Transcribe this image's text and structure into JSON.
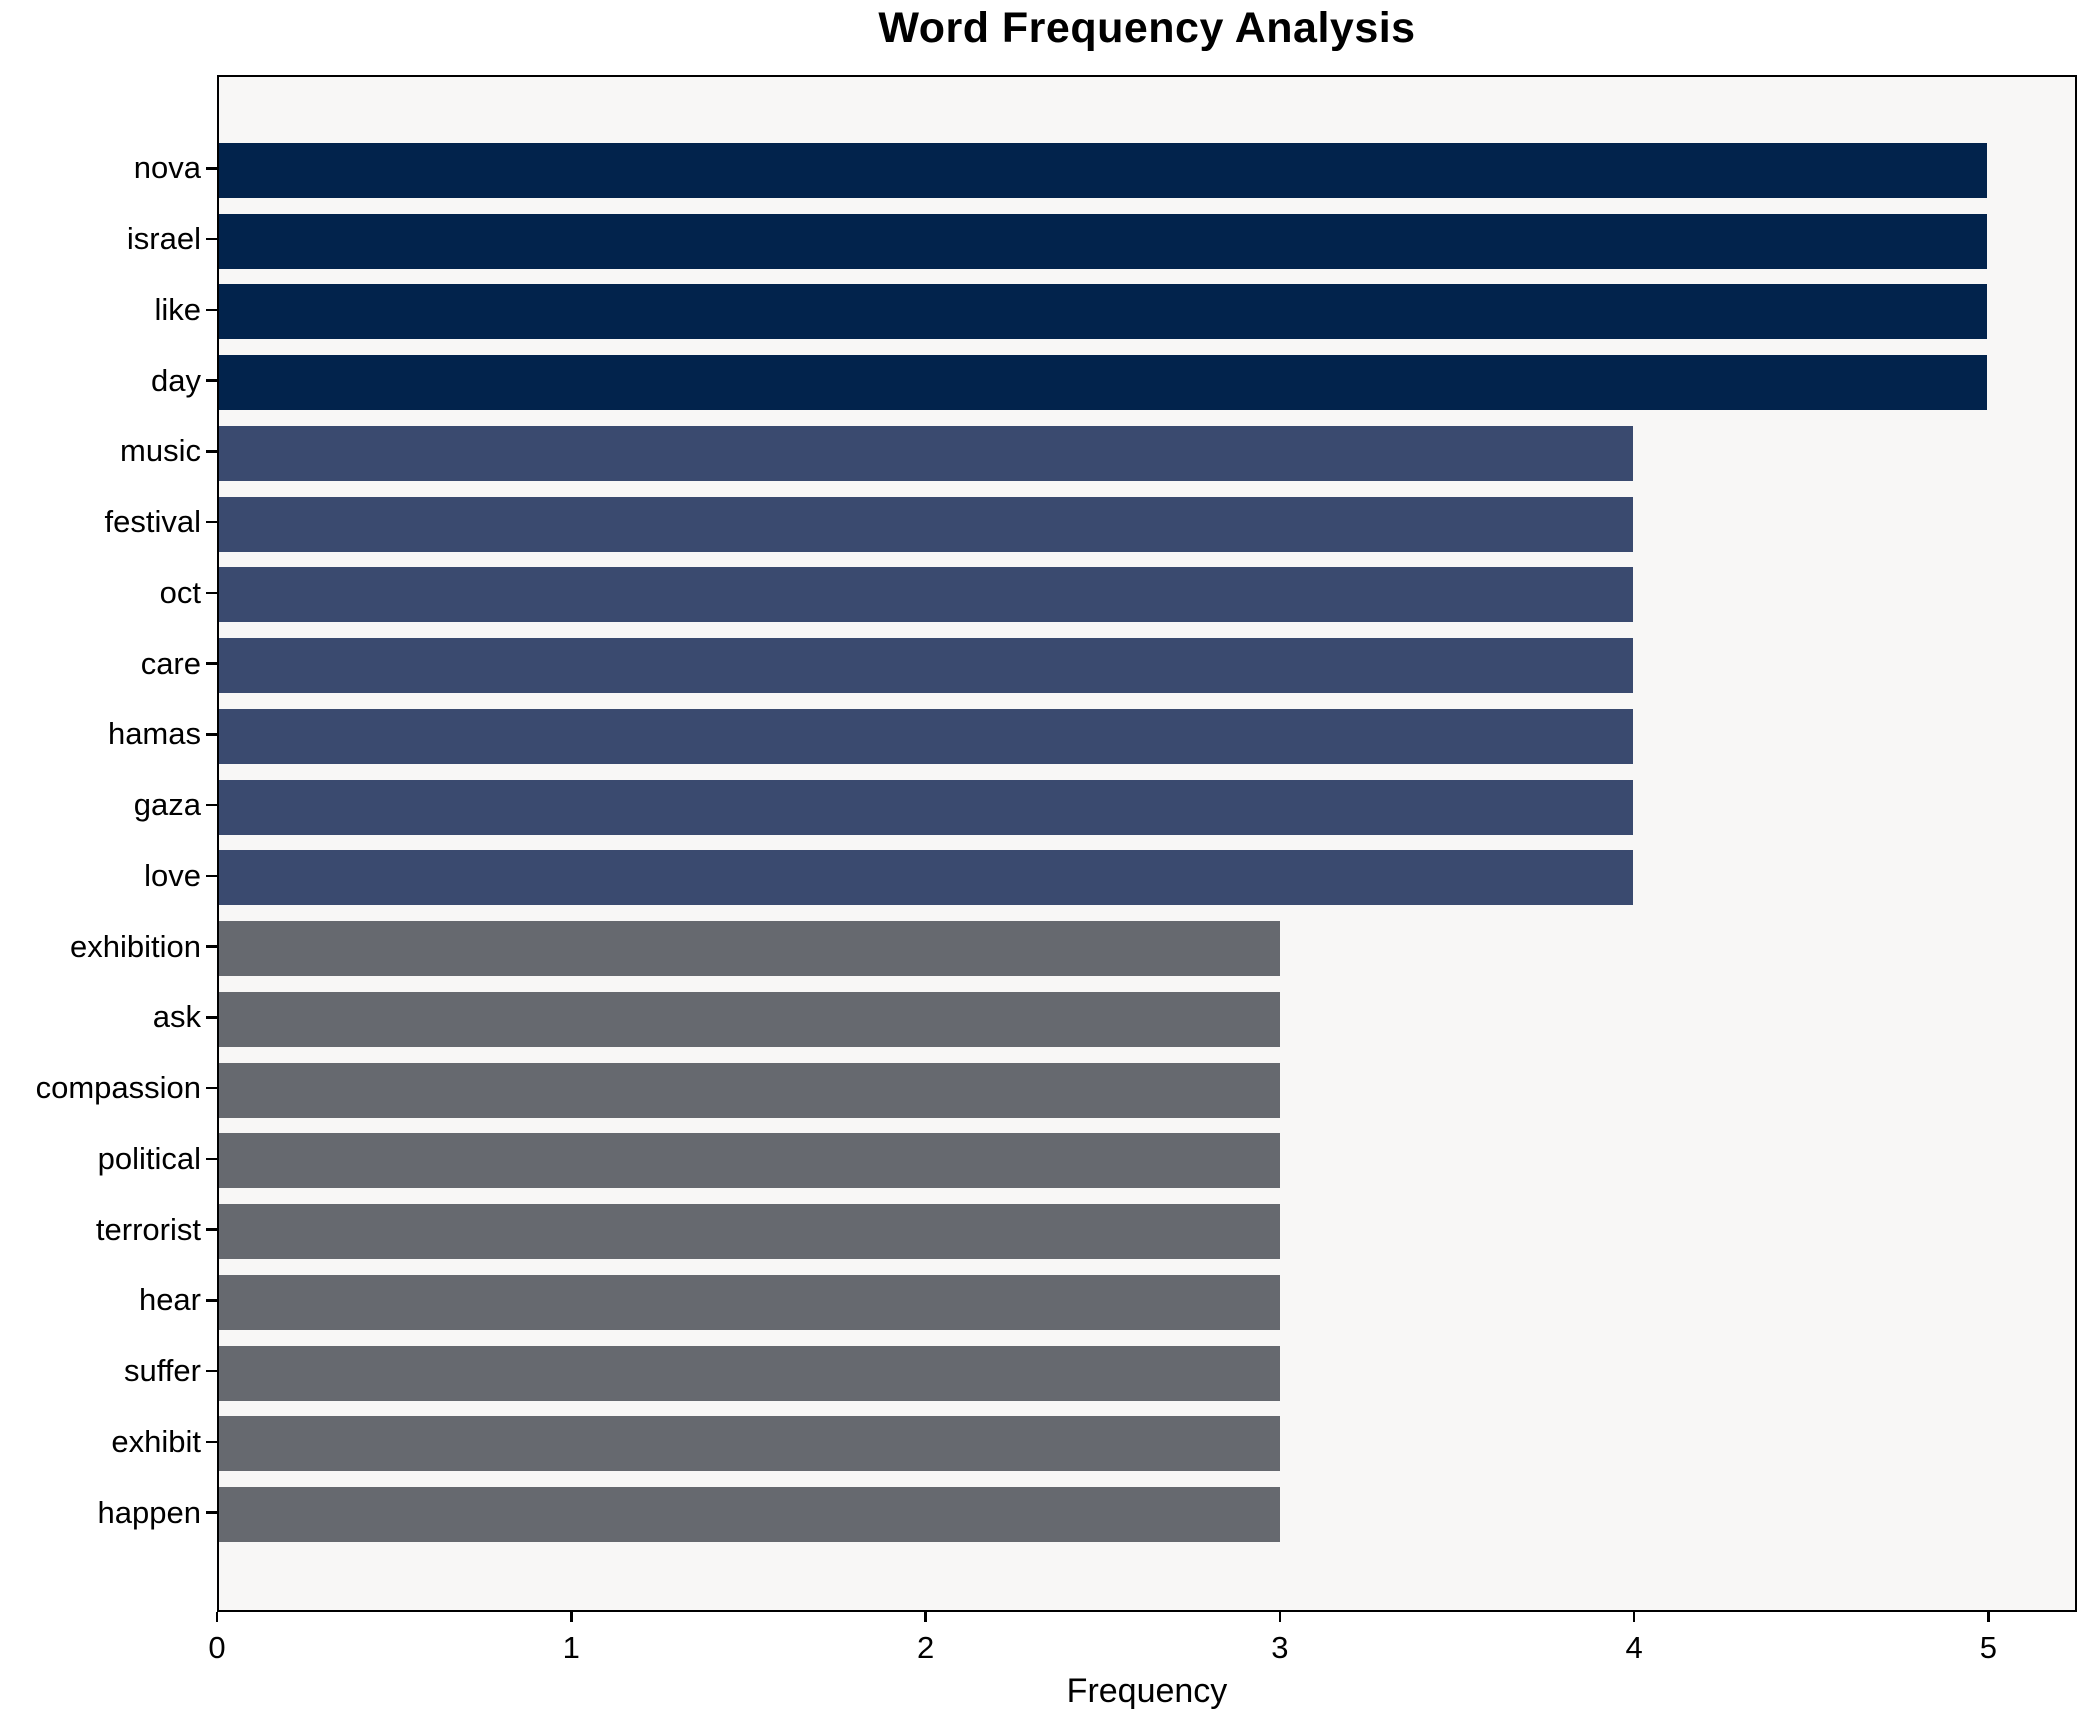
{
  "chart_data": {
    "type": "bar",
    "orientation": "horizontal",
    "title": "Word Frequency Analysis",
    "xlabel": "Frequency",
    "ylabel": "",
    "categories": [
      "nova",
      "israel",
      "like",
      "day",
      "music",
      "festival",
      "oct",
      "care",
      "hamas",
      "gaza",
      "love",
      "exhibition",
      "ask",
      "compassion",
      "political",
      "terrorist",
      "hear",
      "suffer",
      "exhibit",
      "happen"
    ],
    "values": [
      5,
      5,
      5,
      5,
      4,
      4,
      4,
      4,
      4,
      4,
      4,
      3,
      3,
      3,
      3,
      3,
      3,
      3,
      3,
      3
    ],
    "xlim": [
      0,
      5.25
    ],
    "xticks": [
      "0",
      "1",
      "2",
      "3",
      "4",
      "5"
    ],
    "grid": false,
    "legend": null,
    "colors_by_value": {
      "5": "#02234c",
      "4": "#3a4a6f",
      "3": "#66696f"
    },
    "bar_colors": [
      "#02234c",
      "#02234c",
      "#02234c",
      "#02234c",
      "#3a4a6f",
      "#3a4a6f",
      "#3a4a6f",
      "#3a4a6f",
      "#3a4a6f",
      "#3a4a6f",
      "#3a4a6f",
      "#66696f",
      "#66696f",
      "#66696f",
      "#66696f",
      "#66696f",
      "#66696f",
      "#66696f",
      "#66696f",
      "#66696f"
    ],
    "plot_background": "#f8f7f6",
    "figure_background": "#ffffff",
    "spine_color": "#000000",
    "text_color": "#000000"
  }
}
